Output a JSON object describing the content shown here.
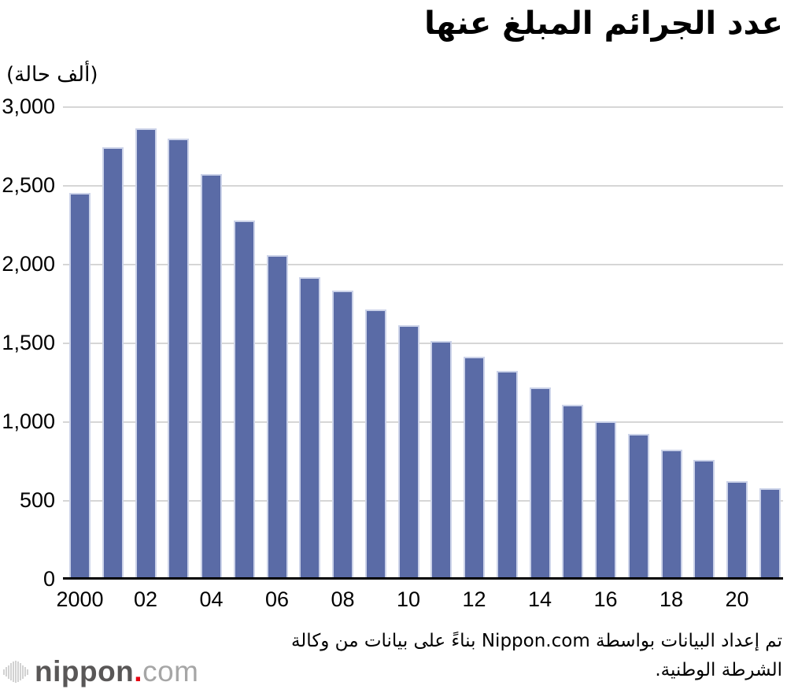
{
  "title": "عدد الجرائم المبلغ عنها",
  "unit_label": "(ألف حالة)",
  "footer": {
    "source_line1": "تم إعداد البيانات بواسطة Nippon.com بناءً على بيانات من وكالة",
    "source_line2": "الشرطة الوطنية.",
    "logo_name": "nippon",
    "logo_dot": ".",
    "logo_tld": "com"
  },
  "colors": {
    "bar_fill": "#5a6ba6",
    "bar_edge": "#ccd3e9",
    "gridline": "#d6d6d6",
    "axis": "#000000",
    "logo_dark_gray": "#595757",
    "logo_light_gray": "#a6a6a6",
    "logo_red": "#e60012",
    "logo_icon_gray": "#d2d2d2"
  },
  "chart_data": {
    "type": "bar",
    "title": "عدد الجرائم المبلغ عنها",
    "xlabel": "",
    "ylabel": "(ألف حالة)",
    "unit": "thousand cases",
    "ylim": [
      0,
      3000
    ],
    "grid": "horizontal",
    "legend": "none",
    "x": [
      2000,
      2001,
      2002,
      2003,
      2004,
      2005,
      2006,
      2007,
      2008,
      2009,
      2010,
      2011,
      2012,
      2013,
      2014,
      2015,
      2016,
      2017,
      2018,
      2019,
      2020,
      2021
    ],
    "values": [
      2443,
      2736,
      2854,
      2790,
      2563,
      2269,
      2051,
      1909,
      1826,
      1703,
      1604,
      1503,
      1403,
      1314,
      1212,
      1099,
      996,
      915,
      817,
      749,
      614,
      568
    ],
    "yticks": [
      {
        "value": 3000,
        "label": "3,000"
      },
      {
        "value": 2500,
        "label": "2,500"
      },
      {
        "value": 2000,
        "label": "2,000"
      },
      {
        "value": 1500,
        "label": "1,500"
      },
      {
        "value": 1000,
        "label": "1,000"
      },
      {
        "value": 500,
        "label": "500"
      },
      {
        "value": 0,
        "label": "0"
      }
    ],
    "xticks": [
      {
        "year": 2000,
        "label": "2000"
      },
      {
        "year": 2002,
        "label": "02"
      },
      {
        "year": 2004,
        "label": "04"
      },
      {
        "year": 2006,
        "label": "06"
      },
      {
        "year": 2008,
        "label": "08"
      },
      {
        "year": 2010,
        "label": "10"
      },
      {
        "year": 2012,
        "label": "12"
      },
      {
        "year": 2014,
        "label": "14"
      },
      {
        "year": 2016,
        "label": "16"
      },
      {
        "year": 2018,
        "label": "18"
      },
      {
        "year": 2020,
        "label": "20"
      }
    ]
  }
}
